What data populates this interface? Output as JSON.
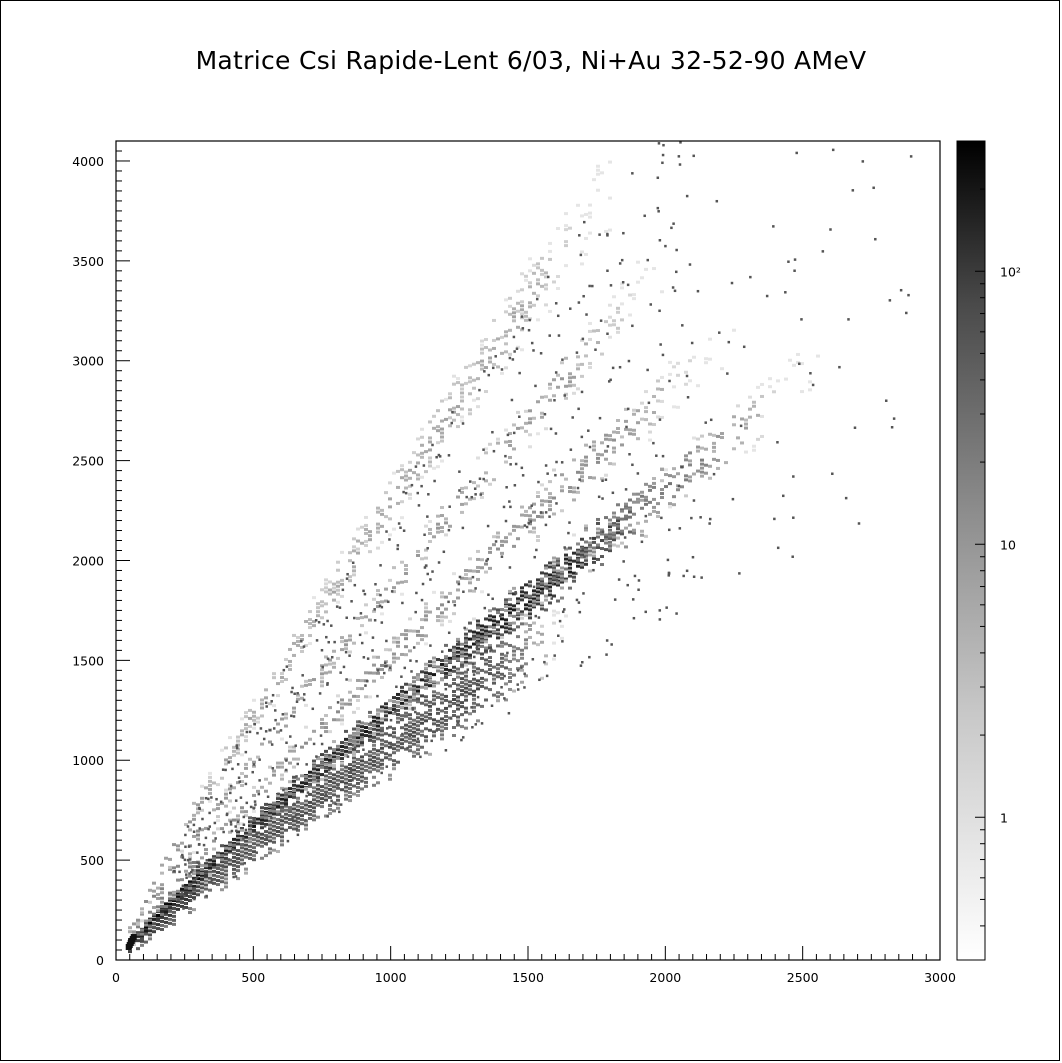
{
  "chart_data": {
    "type": "heatmap",
    "title": "Matrice Csi Rapide-Lent 6/03, Ni+Au 32-52-90 AMeV",
    "xlabel": "",
    "ylabel": "",
    "xlim": [
      0,
      3000
    ],
    "ylim": [
      0,
      4100
    ],
    "x_ticks": [
      "0",
      "500",
      "1000",
      "1500",
      "2000",
      "2500",
      "3000"
    ],
    "y_ticks": [
      "0",
      "500",
      "1000",
      "1500",
      "2000",
      "2500",
      "3000",
      "3500",
      "4000"
    ],
    "colorbar": {
      "scale": "log",
      "range": [
        0.3,
        300
      ],
      "tick_labels": [
        "1",
        "10",
        "10²"
      ],
      "tick_values": [
        1,
        10,
        100
      ]
    },
    "grid": false,
    "bands": [
      {
        "endpoint": [
          1600,
          1650
        ],
        "count_core": 30,
        "width": 1.0,
        "density": 1.0
      },
      {
        "endpoint": [
          2000,
          2350
        ],
        "count_core": 120,
        "width": 0.55,
        "density": 1.0
      },
      {
        "endpoint": [
          2500,
          2900
        ],
        "count_core": 8,
        "width": 0.5,
        "density": 0.55
      },
      {
        "endpoint": [
          2200,
          3100
        ],
        "count_core": 4,
        "width": 0.6,
        "density": 0.45
      },
      {
        "endpoint": [
          2000,
          3500
        ],
        "count_core": 3,
        "width": 0.6,
        "density": 0.4
      },
      {
        "endpoint": [
          1800,
          3900
        ],
        "count_core": 2,
        "width": 0.9,
        "density": 0.45
      }
    ]
  }
}
